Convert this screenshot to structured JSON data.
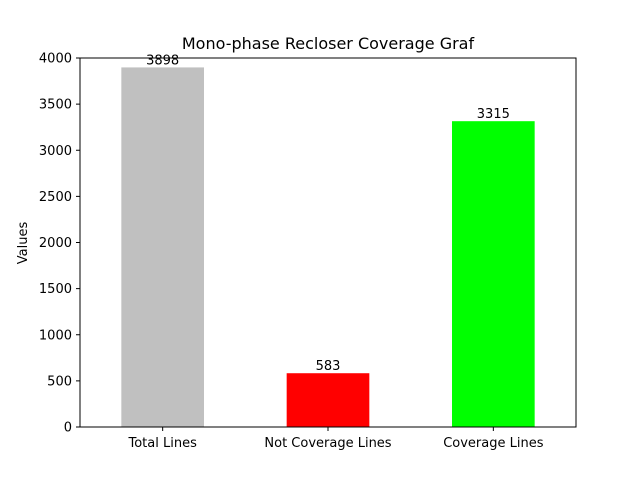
{
  "chart_data": {
    "type": "bar",
    "title": "Mono-phase Recloser Coverage Graf",
    "xlabel": "",
    "ylabel": "Values",
    "categories": [
      "Total Lines",
      "Not Coverage Lines",
      "Coverage Lines"
    ],
    "values": [
      3898,
      583,
      3315
    ],
    "data_labels": [
      "3898",
      "583",
      "3315"
    ],
    "colors": [
      "#c0c0c0",
      "#ff0000",
      "#00ff00"
    ],
    "ylim": [
      0,
      4000
    ],
    "yticks": [
      0,
      500,
      1000,
      1500,
      2000,
      2500,
      3000,
      3500,
      4000
    ],
    "grid": false,
    "legend": "none"
  }
}
